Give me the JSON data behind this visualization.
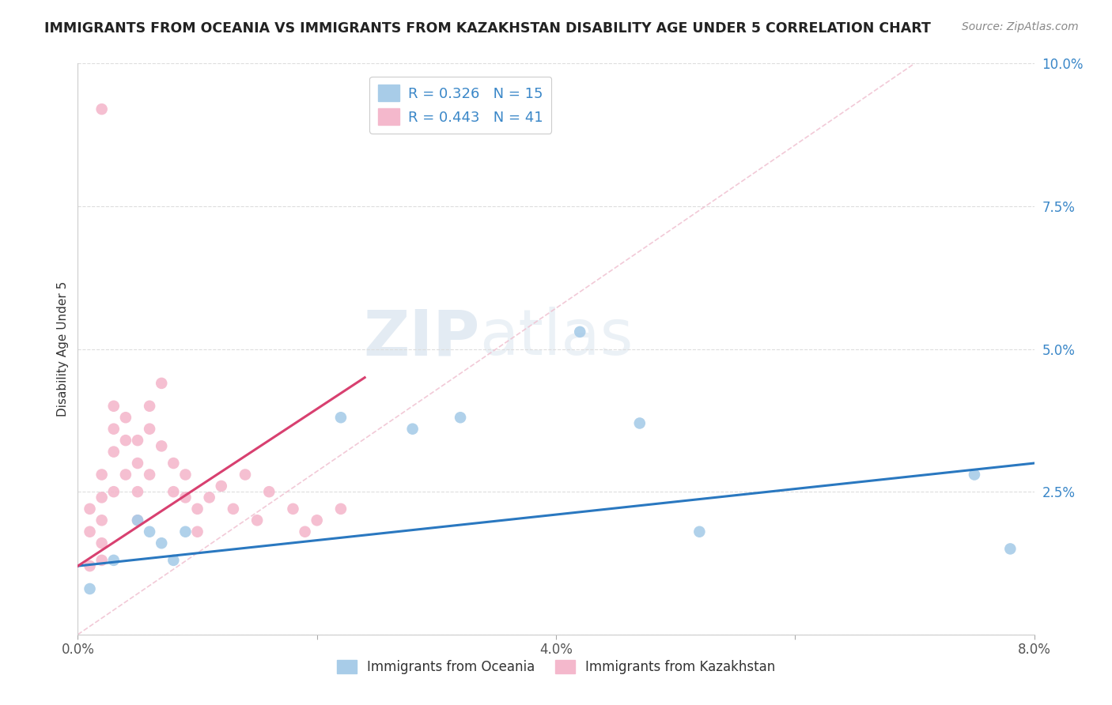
{
  "title": "IMMIGRANTS FROM OCEANIA VS IMMIGRANTS FROM KAZAKHSTAN DISABILITY AGE UNDER 5 CORRELATION CHART",
  "source": "Source: ZipAtlas.com",
  "ylabel": "Disability Age Under 5",
  "xlim": [
    0.0,
    0.08
  ],
  "ylim": [
    0.0,
    0.1
  ],
  "xticks": [
    0.0,
    0.02,
    0.04,
    0.06,
    0.08
  ],
  "xtick_labels": [
    "0.0%",
    "",
    "4.0%",
    "",
    "8.0%"
  ],
  "yticks": [
    0.0,
    0.025,
    0.05,
    0.075,
    0.1
  ],
  "ytick_labels": [
    "",
    "2.5%",
    "5.0%",
    "7.5%",
    "10.0%"
  ],
  "legend1_label": "R = 0.326   N = 15",
  "legend2_label": "R = 0.443   N = 41",
  "blue_color": "#a8cce8",
  "pink_color": "#f4b8cc",
  "blue_line_color": "#2a78c0",
  "pink_line_color": "#d84070",
  "diag_line_color": "#f0c0d0",
  "watermark_zip": "ZIP",
  "watermark_atlas": "atlas",
  "background_color": "#ffffff",
  "grid_color": "#dddddd",
  "oceania_x": [
    0.001,
    0.003,
    0.005,
    0.006,
    0.007,
    0.008,
    0.009,
    0.022,
    0.028,
    0.032,
    0.042,
    0.047,
    0.052,
    0.075,
    0.078
  ],
  "oceania_y": [
    0.008,
    0.013,
    0.02,
    0.018,
    0.016,
    0.013,
    0.018,
    0.038,
    0.036,
    0.038,
    0.053,
    0.037,
    0.018,
    0.028,
    0.015
  ],
  "kazakhstan_x": [
    0.001,
    0.001,
    0.001,
    0.002,
    0.002,
    0.002,
    0.002,
    0.002,
    0.003,
    0.003,
    0.003,
    0.003,
    0.004,
    0.004,
    0.004,
    0.005,
    0.005,
    0.005,
    0.005,
    0.006,
    0.006,
    0.006,
    0.007,
    0.007,
    0.008,
    0.008,
    0.009,
    0.009,
    0.01,
    0.01,
    0.011,
    0.012,
    0.013,
    0.014,
    0.015,
    0.016,
    0.018,
    0.019,
    0.02,
    0.022,
    0.002
  ],
  "kazakhstan_y": [
    0.012,
    0.018,
    0.022,
    0.016,
    0.02,
    0.024,
    0.028,
    0.013,
    0.032,
    0.036,
    0.04,
    0.025,
    0.034,
    0.038,
    0.028,
    0.03,
    0.034,
    0.025,
    0.02,
    0.04,
    0.036,
    0.028,
    0.044,
    0.033,
    0.03,
    0.025,
    0.024,
    0.028,
    0.018,
    0.022,
    0.024,
    0.026,
    0.022,
    0.028,
    0.02,
    0.025,
    0.022,
    0.018,
    0.02,
    0.022,
    0.092
  ],
  "pink_line_x": [
    0.0,
    0.024
  ],
  "pink_line_y": [
    0.012,
    0.045
  ],
  "blue_line_x": [
    0.0,
    0.08
  ],
  "blue_line_y": [
    0.012,
    0.03
  ]
}
